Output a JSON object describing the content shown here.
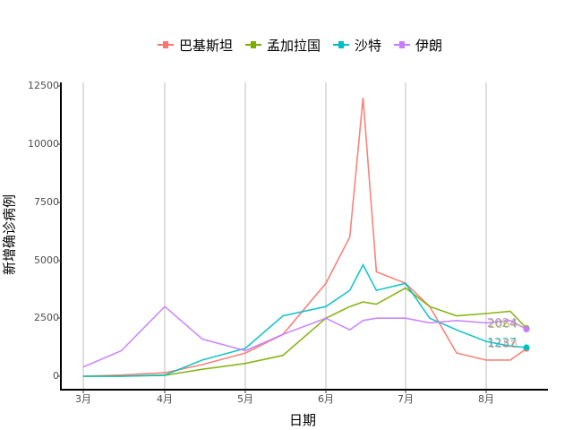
{
  "chart_data": {
    "type": "line",
    "title": "",
    "xlabel": "日期",
    "ylabel": "新增确诊病例",
    "ylim": [
      0,
      12500
    ],
    "y_ticks": [
      "0",
      "2500",
      "5000",
      "7500",
      "10000",
      "12500"
    ],
    "x_ticks": [
      "3月",
      "4月",
      "5月",
      "6月",
      "7月",
      "8月"
    ],
    "grid": {
      "vertical_major": true,
      "horizontal": false
    },
    "legend_position": "top",
    "x": [
      "03-01",
      "03-15",
      "04-01",
      "04-15",
      "05-01",
      "05-15",
      "06-01",
      "06-10",
      "06-15",
      "06-20",
      "07-01",
      "07-10",
      "07-20",
      "08-01",
      "08-10",
      "08-16"
    ],
    "series": [
      {
        "name": "巴基斯坦",
        "color": "#F8766D",
        "values": [
          0,
          50,
          150,
          500,
          1000,
          1800,
          4000,
          6000,
          12000,
          4500,
          4000,
          3000,
          1000,
          700,
          700,
          1188
        ]
      },
      {
        "name": "孟加拉国",
        "color": "#7CAE00",
        "values": [
          0,
          0,
          40,
          300,
          550,
          900,
          2500,
          3000,
          3200,
          3100,
          3800,
          3000,
          2600,
          2700,
          2800,
          2064
        ]
      },
      {
        "name": "沙特",
        "color": "#00BFC4",
        "values": [
          0,
          0,
          50,
          700,
          1200,
          2600,
          3000,
          3700,
          4800,
          3700,
          4000,
          2500,
          2000,
          1500,
          1300,
          1237
        ]
      },
      {
        "name": "伊朗",
        "color": "#C77CFF",
        "values": [
          400,
          1100,
          3000,
          1600,
          1100,
          1800,
          2500,
          2000,
          2400,
          2500,
          2500,
          2300,
          2400,
          2300,
          2400,
          2024
        ]
      }
    ],
    "end_labels": [
      {
        "series": "伊朗",
        "value": "2024"
      },
      {
        "series": "孟加拉国",
        "value": "2064"
      },
      {
        "series": "沙特",
        "value": "1237"
      },
      {
        "series": "巴基斯坦",
        "value": "1188"
      }
    ]
  },
  "legend": {
    "items": [
      {
        "label": "巴基斯坦",
        "color": "#F8766D"
      },
      {
        "label": "孟加拉国",
        "color": "#7CAE00"
      },
      {
        "label": "沙特",
        "color": "#00BFC4"
      },
      {
        "label": "伊朗",
        "color": "#C77CFF"
      }
    ]
  }
}
